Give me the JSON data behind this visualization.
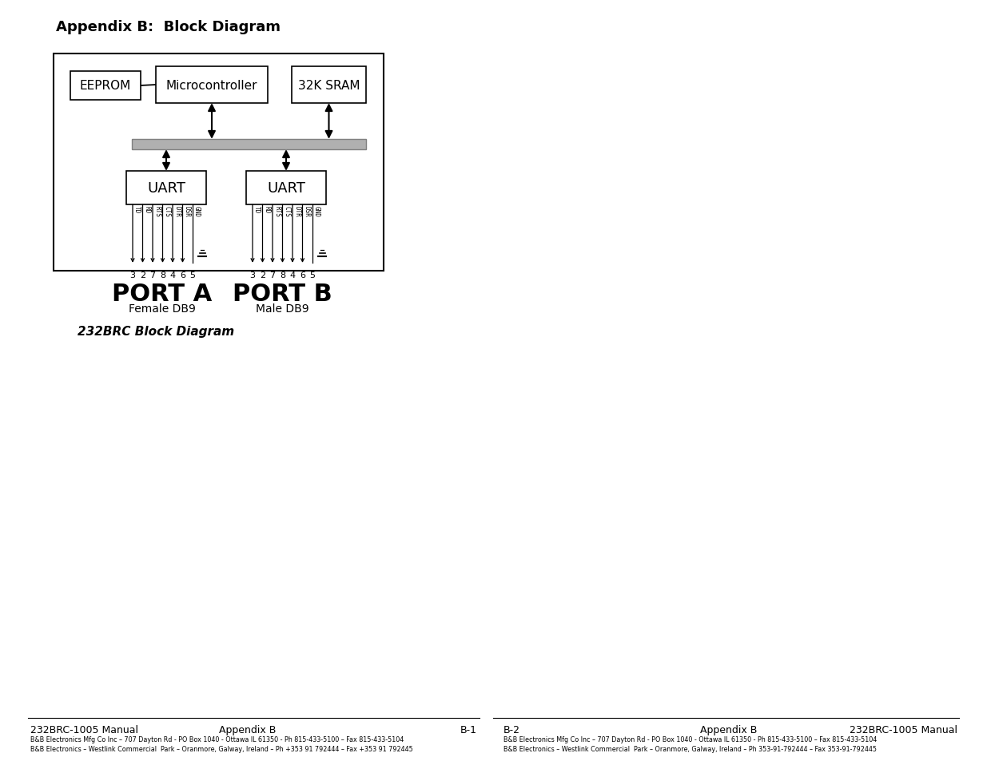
{
  "title": "Appendix B:  Block Diagram",
  "caption": "232BRC Block Diagram",
  "background_color": "#ffffff",
  "footer_left_col1": "232BRC-1005 Manual",
  "footer_left_col2": "Appendix B",
  "footer_left_col3": "B-1",
  "footer_right_col1": "B-2",
  "footer_right_col2": "Appendix B",
  "footer_right_col3": "232BRC-1005 Manual",
  "footer_small1": "B&B Electronics Mfg Co Inc – 707 Dayton Rd - PO Box 1040 - Ottawa IL 61350 - Ph 815-433-5100 – Fax 815-433-5104",
  "footer_small2": "B&B Electronics – Westlink Commercial  Park – Oranmore, Galway, Ireland – Ph +353 91 792444 – Fax +353 91 792445",
  "footer_small3": "B&B Electronics Mfg Co Inc – 707 Dayton Rd - PO Box 1040 - Ottawa IL 61350 - Ph 815-433-5100 – Fax 815-433-5104",
  "footer_small4": "B&B Electronics – Westlink Commercial  Park – Oranmore, Galway, Ireland – Ph 353-91-792444 – Fax 353-91-792445",
  "port_a_label": "PORT A",
  "port_a_sub": "Female DB9",
  "port_b_label": "PORT B",
  "port_b_sub": "Male DB9",
  "port_a_signals": [
    "TD",
    "RD",
    "RTS",
    "CTS",
    "DTR",
    "DSR",
    "GND"
  ],
  "port_b_signals": [
    "TD",
    "RD",
    "RTS",
    "CTS",
    "DTR",
    "DSR",
    "GND"
  ],
  "pins": [
    "3",
    "2",
    "7",
    "8",
    "4",
    "6",
    "5"
  ]
}
